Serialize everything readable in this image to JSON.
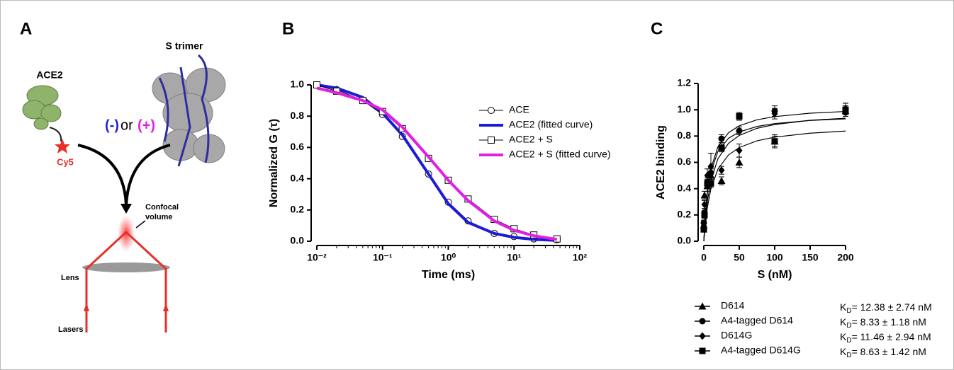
{
  "panel_labels": [
    "A",
    "B",
    "C"
  ],
  "diagram": {
    "ace2": "ACE2",
    "dye": "Cy5",
    "trimer": "S trimer",
    "minus": "(-)",
    "or": "or",
    "plus": "(+)",
    "confocal_1": "Confocal",
    "confocal_2": "volume",
    "lens": "Lens",
    "lasers": "Lasers"
  },
  "chart_data": [
    {
      "type": "line",
      "xlabel": "Time (ms)",
      "ylabel": "Normalized G (τ)",
      "xscale": "log",
      "x": [
        0.01,
        0.02,
        0.05,
        0.1,
        0.2,
        0.5,
        1,
        2,
        5,
        10,
        20,
        45
      ],
      "series": [
        {
          "name": "ACE",
          "color": "#000000",
          "marker": "circle",
          "line_width": 1,
          "values": [
            1.0,
            0.97,
            0.9,
            0.81,
            0.67,
            0.43,
            0.25,
            0.13,
            0.05,
            0.03,
            0.015,
            0.01
          ]
        },
        {
          "name": "ACE2 (fitted curve)",
          "color": "#1c1cd8",
          "marker": null,
          "line_width": 4,
          "values": [
            1.0,
            0.98,
            0.92,
            0.82,
            0.68,
            0.43,
            0.24,
            0.12,
            0.05,
            0.025,
            0.012,
            0.005
          ]
        },
        {
          "name": "ACE2 + S",
          "color": "#000000",
          "marker": "square",
          "line_width": 1,
          "values": [
            1.0,
            0.96,
            0.9,
            0.83,
            0.72,
            0.53,
            0.39,
            0.27,
            0.14,
            0.08,
            0.04,
            0.015
          ]
        },
        {
          "name": "ACE2 + S (fitted curve)",
          "color": "#e21ee2",
          "marker": null,
          "line_width": 4,
          "values": [
            0.98,
            0.95,
            0.9,
            0.84,
            0.73,
            0.54,
            0.39,
            0.26,
            0.13,
            0.07,
            0.035,
            0.012
          ]
        }
      ],
      "xlim": [
        0.01,
        100
      ],
      "xticks": [
        {
          "value": 0.01,
          "label": "10⁻²"
        },
        {
          "value": 0.1,
          "label": "10⁻¹"
        },
        {
          "value": 1,
          "label": "10⁰"
        },
        {
          "value": 10,
          "label": "10¹"
        },
        {
          "value": 100,
          "label": "10²"
        }
      ],
      "ylim": [
        0,
        1.0
      ],
      "yticks": [
        {
          "value": 0,
          "label": "0.0"
        },
        0.2,
        0.4,
        0.6,
        0.8,
        {
          "value": 1.0,
          "label": "1.0"
        }
      ],
      "legend": "upper right"
    },
    {
      "type": "scatter",
      "xlabel": "S (nM)",
      "ylabel": "ACE2 binding",
      "x": [
        0,
        1,
        5,
        10,
        25,
        50,
        100,
        200
      ],
      "fit_x": [
        0,
        2,
        5,
        10,
        20,
        35,
        50,
        75,
        100,
        150,
        200
      ],
      "kd_symbol": "K",
      "kd_subscript": "D",
      "series": [
        {
          "name": "D614",
          "marker": "triangle",
          "color": "#000000",
          "kd_label": "= 12.38 ± 2.74 nM",
          "values": [
            0.12,
            0.35,
            0.42,
            0.5,
            0.46,
            0.6,
            0.76,
            0.99
          ],
          "errors": [
            0.02,
            0.03,
            0.04,
            0.05,
            0.03,
            0.04,
            0.04,
            0.04
          ],
          "fit": [
            0,
            0.124,
            0.256,
            0.398,
            0.55,
            0.657,
            0.713,
            0.764,
            0.792,
            0.822,
            0.838
          ]
        },
        {
          "name": "A4-tagged D614",
          "marker": "circle",
          "color": "#000000",
          "kd_label": "= 8.33 ± 1.18 nM",
          "values": [
            0.14,
            0.22,
            0.45,
            0.52,
            0.78,
            0.84,
            0.99,
            0.98
          ],
          "errors": [
            0.02,
            0.03,
            0.03,
            0.04,
            0.03,
            0.03,
            0.04,
            0.03
          ],
          "fit": [
            0,
            0.188,
            0.364,
            0.529,
            0.685,
            0.784,
            0.831,
            0.873,
            0.895,
            0.919,
            0.931
          ]
        },
        {
          "name": "D614G",
          "marker": "diamond",
          "color": "#000000",
          "kd_label": "= 11.46 ± 2.94 nM",
          "values": [
            0.1,
            0.28,
            0.5,
            0.57,
            0.54,
            0.69,
            0.97,
            1.01
          ],
          "errors": [
            0.02,
            0.03,
            0.05,
            0.1,
            0.03,
            0.05,
            0.04,
            0.04
          ],
          "fit": [
            0,
            0.147,
            0.301,
            0.461,
            0.629,
            0.746,
            0.805,
            0.859,
            0.888,
            0.92,
            0.936
          ]
        },
        {
          "name": "A4-tagged D614G",
          "marker": "square",
          "color": "#000000",
          "kd_label": "= 8.63 ± 1.42 nM",
          "values": [
            0.09,
            0.2,
            0.44,
            0.44,
            0.71,
            0.95,
            0.76,
            1.0
          ],
          "errors": [
            0.02,
            0.03,
            0.03,
            0.03,
            0.03,
            0.03,
            0.05,
            0.05
          ],
          "fit": [
            0,
            0.194,
            0.378,
            0.553,
            0.72,
            0.826,
            0.878,
            0.924,
            0.948,
            0.974,
            0.987
          ]
        }
      ],
      "xlim": [
        0,
        200
      ],
      "xticks": [
        0,
        50,
        100,
        150,
        200
      ],
      "ylim": [
        0,
        1.2
      ],
      "yticks": [
        {
          "value": 0,
          "label": "0.0"
        },
        0.2,
        0.4,
        0.6,
        0.8,
        {
          "value": 1.0,
          "label": "1.0"
        },
        1.2
      ],
      "legend": "below"
    }
  ]
}
